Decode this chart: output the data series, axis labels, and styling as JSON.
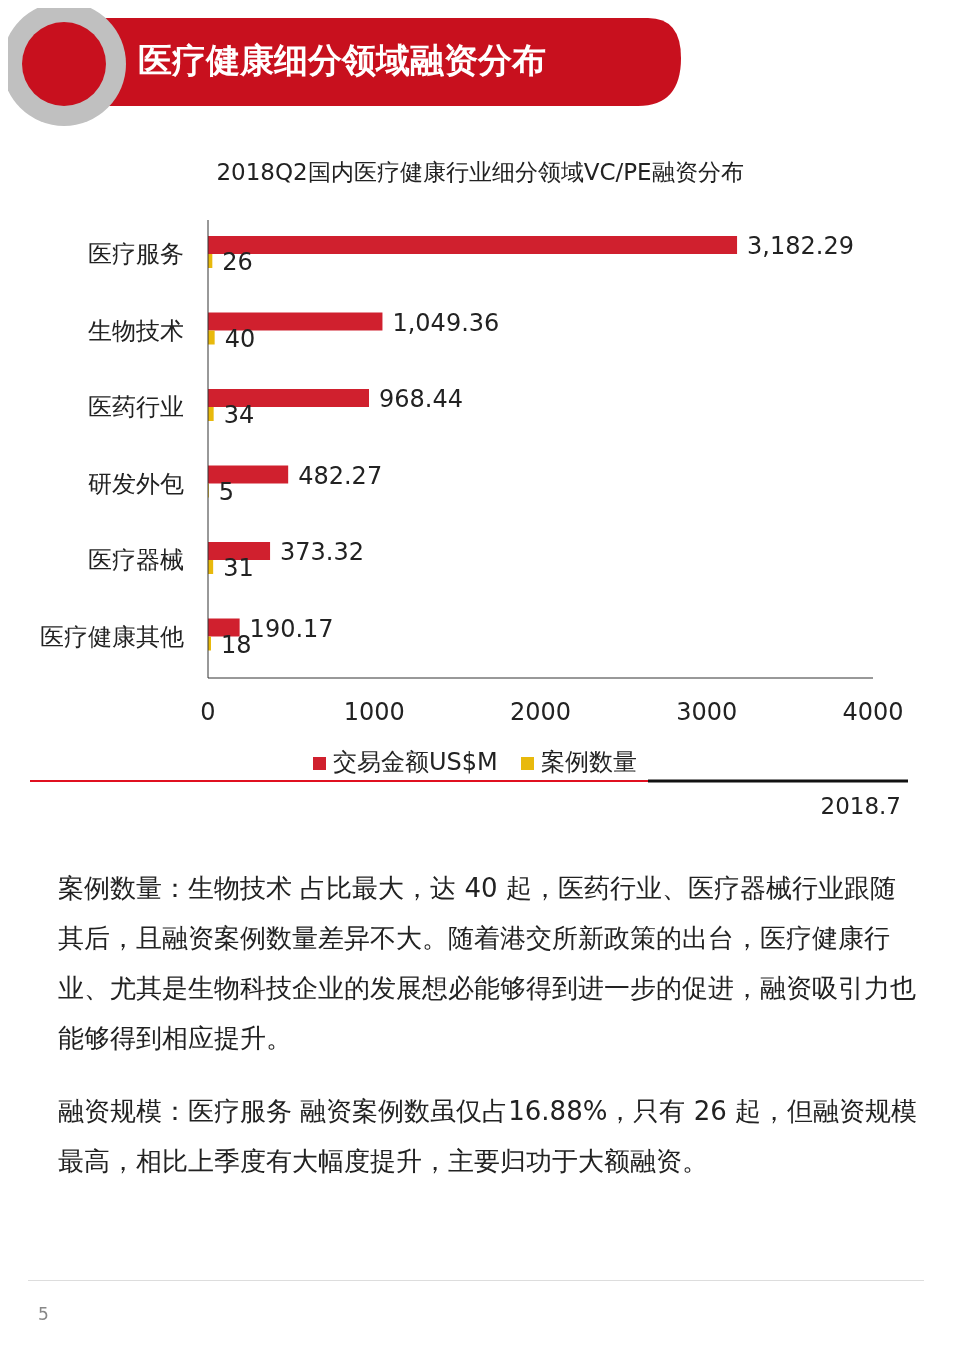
{
  "chart_data": {
    "type": "bar",
    "orientation": "horizontal",
    "title": "医疗健康细分领域融资分布",
    "subtitle": "2018Q2国内医疗健康行业细分领域VC/PE融资分布",
    "categories": [
      "医疗服务",
      "生物技术",
      "医药行业",
      "研发外包",
      "医疗器械",
      "医疗健康其他"
    ],
    "series": [
      {
        "name": "交易金额US$M",
        "color": "#d0202e",
        "values": [
          3182.29,
          1049.36,
          968.44,
          482.27,
          373.32,
          190.17
        ],
        "value_labels": [
          "3,182.29",
          "1,049.36",
          "968.44",
          "482.27",
          "373.32",
          "190.17"
        ]
      },
      {
        "name": "案例数量",
        "color": "#e8b90c",
        "values": [
          26,
          40,
          34,
          5,
          31,
          18
        ],
        "value_labels": [
          "26",
          "40",
          "34",
          "5",
          "31",
          "18"
        ]
      }
    ],
    "xlim": [
      0,
      4000
    ],
    "xticks": [
      0,
      1000,
      2000,
      3000,
      4000
    ],
    "grid": false,
    "legend": "bottom",
    "annotations": [
      "案例数量：生物技术 占比最大，达 40 起，医药行业、医疗器械行业跟随其后，且融资案例数量差异不大。随着港交所新政策的出台，医疗健康行业、尤其是生物科技企业的发展想必能够得到进一步的促进，融资吸引力也能够得到相应提升。",
      "融资规模：医疗服务 融资案例数虽仅占16.88%，只有 26 起，但融资规模最高，相比上季度有大幅度提升，主要归功于大额融资。",
      "2018.7",
      "5"
    ]
  }
}
